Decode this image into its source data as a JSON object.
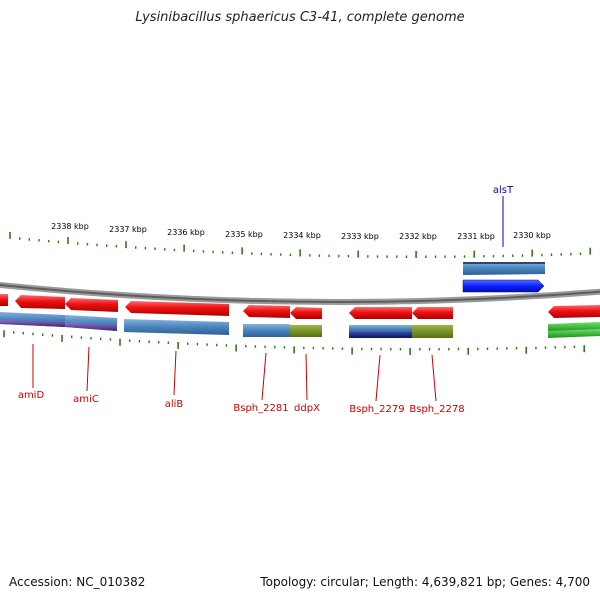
{
  "title": "Lysinibacillus sphaericus C3-41, complete genome",
  "footer": {
    "accession": "Accession: NC_010382",
    "summary": "Topology: circular; Length: 4,639,821 bp; Genes: 4,700"
  },
  "colors": {
    "cds_red": "#ee1111",
    "steel_blue": "#4a84bd",
    "purple": "#5a3f95",
    "navy": "#12237a",
    "olive": "#6f8c1c",
    "green": "#2fb12f",
    "bright_blue": "#0a1fff",
    "tick_green": "#2e7a1a",
    "label_red": "#cc0000",
    "label_blue": "#0000cc"
  },
  "ticks": [
    {
      "label": "2338 kbp"
    },
    {
      "label": "2337 kbp"
    },
    {
      "label": "2336 kbp"
    },
    {
      "label": "2335 kbp"
    },
    {
      "label": "2334 kbp"
    },
    {
      "label": "2333 kbp"
    },
    {
      "label": "2332 kbp"
    },
    {
      "label": "2331 kbp"
    },
    {
      "label": "2330 kbp"
    }
  ],
  "genes": [
    {
      "name": "amiD",
      "strand": "minus"
    },
    {
      "name": "amiC",
      "strand": "minus"
    },
    {
      "name": "aliB",
      "strand": "minus"
    },
    {
      "name": "Bsph_2281",
      "strand": "minus"
    },
    {
      "name": "ddpX",
      "strand": "minus"
    },
    {
      "name": "Bsph_2279",
      "strand": "minus"
    },
    {
      "name": "Bsph_2278",
      "strand": "minus"
    },
    {
      "name": "alsT",
      "strand": "plus"
    }
  ]
}
